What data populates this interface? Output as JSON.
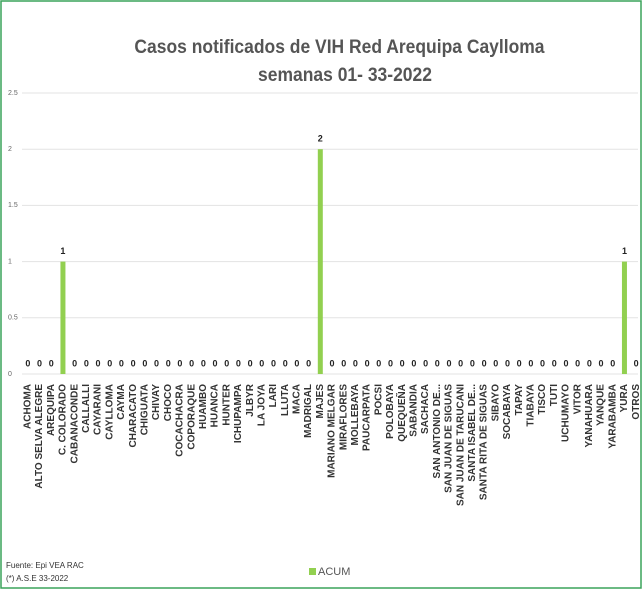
{
  "chart_data": {
    "type": "bar",
    "title": "Casos notificados de VIH Red Arequipa Caylloma",
    "subtitle": "semanas 01- 33-2022",
    "categories": [
      "ACHOMA",
      "ALTO SELVA ALEGRE",
      "AREQUIPA",
      "C. COLORADO",
      "CABANACONDE",
      "CALLALLI",
      "CAYARANI",
      "CAYLLOMA",
      "CAYMA",
      "CHARACATO",
      "CHIGUATA",
      "CHIVAY",
      "CHOCO",
      "COCACHACRA",
      "COPORAQUE",
      "HUAMBO",
      "HUANCA",
      "HUNTER",
      "ICHUPAMPA",
      "JLBYR",
      "LA JOYA",
      "LARI",
      "LLUTA",
      "MACA",
      "MADRIGAL",
      "MAJES",
      "MARIANO MELGAR",
      "MIRAFLORES",
      "MOLLEBAYA",
      "PAUCARPATA",
      "POCSI",
      "POLOBAYA",
      "QUEQUEÑA",
      "SABANDIA",
      "SACHACA",
      "SAN ANTONIO DE...",
      "SAN JUAN DE SIGUAS",
      "SAN JUAN DE TARUCANI",
      "SANTA ISABEL DE...",
      "SANTA RITA DE SIGUAS",
      "SIBAYO",
      "SOCABAYA",
      "TAPAY",
      "TIABAYA",
      "TISCO",
      "TUTI",
      "UCHUMAYO",
      "VITOR",
      "YANAHUARA",
      "YANQUE",
      "YARABAMBA",
      "YURA",
      "OTROS"
    ],
    "series": [
      {
        "name": "ACUM",
        "color": "#92d050",
        "values": [
          0,
          0,
          0,
          1,
          0,
          0,
          0,
          0,
          0,
          0,
          0,
          0,
          0,
          0,
          0,
          0,
          0,
          0,
          0,
          0,
          0,
          0,
          0,
          0,
          0,
          2,
          0,
          0,
          0,
          0,
          0,
          0,
          0,
          0,
          0,
          0,
          0,
          0,
          0,
          0,
          0,
          0,
          0,
          0,
          0,
          0,
          0,
          0,
          0,
          0,
          0,
          1,
          0
        ]
      }
    ],
    "ylim": [
      0,
      2.5
    ],
    "yticks": [
      0,
      0.5,
      1,
      1.5,
      2,
      2.5
    ],
    "grid": true,
    "legend": "bottom",
    "source": "Fuente: Epi VEA RAC",
    "note": "(*) A.S.E 33-2022"
  }
}
